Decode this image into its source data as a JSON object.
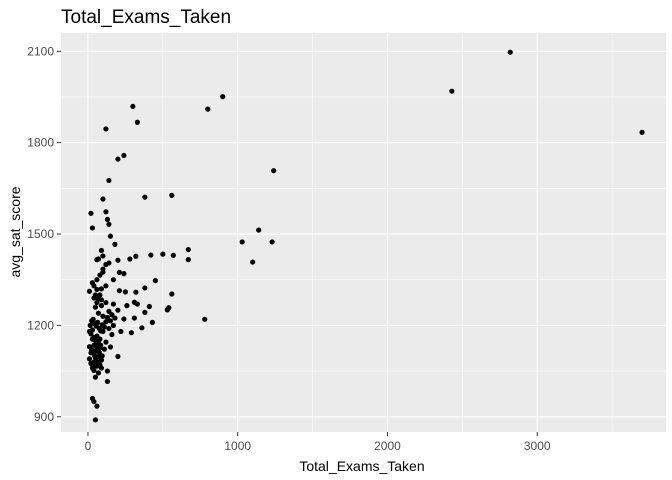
{
  "chart_data": {
    "type": "scatter",
    "title": "Total_Exams_Taken",
    "xlabel": "Total_Exams_Taken",
    "ylabel": "avg_sat_score",
    "xlim": [
      -180,
      3860
    ],
    "ylim": [
      850,
      2160
    ],
    "x_ticks": [
      0,
      1000,
      2000,
      3000
    ],
    "y_ticks": [
      900,
      1200,
      1500,
      1800,
      2100
    ],
    "x_tick_labels": [
      "0",
      "1000",
      "2000",
      "3000"
    ],
    "y_tick_labels": [
      "900",
      "1200",
      "1500",
      "1800",
      "2100"
    ],
    "grid": true,
    "legend": "none",
    "colors": {
      "panel": "#ebebeb",
      "grid_major": "#ffffff",
      "point": "#000000",
      "tick": "#333333"
    },
    "points": [
      [
        2820,
        2097
      ],
      [
        2430,
        1969
      ],
      [
        3700,
        1834
      ],
      [
        900,
        1951
      ],
      [
        800,
        1910
      ],
      [
        300,
        1919
      ],
      [
        330,
        1867
      ],
      [
        120,
        1845
      ],
      [
        240,
        1758
      ],
      [
        200,
        1746
      ],
      [
        1240,
        1708
      ],
      [
        140,
        1676
      ],
      [
        560,
        1627
      ],
      [
        380,
        1621
      ],
      [
        100,
        1615
      ],
      [
        20,
        1568
      ],
      [
        120,
        1573
      ],
      [
        130,
        1548
      ],
      [
        140,
        1532
      ],
      [
        30,
        1520
      ],
      [
        1140,
        1513
      ],
      [
        1230,
        1474
      ],
      [
        1030,
        1474
      ],
      [
        1100,
        1408
      ],
      [
        780,
        1220
      ],
      [
        670,
        1449
      ],
      [
        670,
        1416
      ],
      [
        500,
        1434
      ],
      [
        420,
        1431
      ],
      [
        570,
        1430
      ],
      [
        320,
        1427
      ],
      [
        280,
        1418
      ],
      [
        200,
        1414
      ],
      [
        100,
        1428
      ],
      [
        150,
        1493
      ],
      [
        180,
        1466
      ],
      [
        90,
        1446
      ],
      [
        70,
        1418
      ],
      [
        60,
        1416
      ],
      [
        140,
        1405
      ],
      [
        120,
        1400
      ],
      [
        100,
        1385
      ],
      [
        210,
        1374
      ],
      [
        240,
        1370
      ],
      [
        170,
        1350
      ],
      [
        30,
        1340
      ],
      [
        120,
        1330
      ],
      [
        210,
        1314
      ],
      [
        250,
        1310
      ],
      [
        320,
        1309
      ],
      [
        380,
        1323
      ],
      [
        450,
        1347
      ],
      [
        560,
        1303
      ],
      [
        10,
        1312
      ],
      [
        50,
        1300
      ],
      [
        60,
        1318
      ],
      [
        40,
        1290
      ],
      [
        90,
        1284
      ],
      [
        120,
        1275
      ],
      [
        170,
        1270
      ],
      [
        260,
        1265
      ],
      [
        310,
        1276
      ],
      [
        330,
        1270
      ],
      [
        410,
        1262
      ],
      [
        530,
        1251
      ],
      [
        540,
        1258
      ],
      [
        380,
        1243
      ],
      [
        200,
        1250
      ],
      [
        140,
        1246
      ],
      [
        70,
        1240
      ],
      [
        100,
        1230
      ],
      [
        180,
        1224
      ],
      [
        240,
        1221
      ],
      [
        310,
        1224
      ],
      [
        430,
        1210
      ],
      [
        360,
        1192
      ],
      [
        290,
        1176
      ],
      [
        220,
        1180
      ],
      [
        160,
        1170
      ],
      [
        120,
        1145
      ],
      [
        60,
        1140
      ],
      [
        30,
        1155
      ],
      [
        40,
        1135
      ],
      [
        80,
        1126
      ],
      [
        110,
        1122
      ],
      [
        150,
        1129
      ],
      [
        200,
        1098
      ],
      [
        20,
        1110
      ],
      [
        50,
        1094
      ],
      [
        90,
        1086
      ],
      [
        60,
        1066
      ],
      [
        30,
        1070
      ],
      [
        40,
        1052
      ],
      [
        70,
        1044
      ],
      [
        130,
        1050
      ],
      [
        50,
        1030
      ],
      [
        130,
        1016
      ],
      [
        15,
        1200
      ],
      [
        25,
        1215
      ],
      [
        35,
        1220
      ],
      [
        45,
        1205
      ],
      [
        55,
        1198
      ],
      [
        65,
        1210
      ],
      [
        75,
        1190
      ],
      [
        85,
        1182
      ],
      [
        95,
        1202
      ],
      [
        10,
        1180
      ],
      [
        20,
        1172
      ],
      [
        30,
        1185
      ],
      [
        40,
        1160
      ],
      [
        50,
        1150
      ],
      [
        60,
        1165
      ],
      [
        70,
        1145
      ],
      [
        80,
        1155
      ],
      [
        10,
        1130
      ],
      [
        25,
        1120
      ],
      [
        35,
        1110
      ],
      [
        45,
        1100
      ],
      [
        55,
        1090
      ],
      [
        65,
        1080
      ],
      [
        75,
        1112
      ],
      [
        85,
        1135
      ],
      [
        95,
        1100
      ],
      [
        10,
        1090
      ],
      [
        20,
        1075
      ],
      [
        30,
        1060
      ],
      [
        40,
        1080
      ],
      [
        50,
        1115
      ],
      [
        60,
        1125
      ],
      [
        70,
        1098
      ],
      [
        80,
        1070
      ],
      [
        90,
        1060
      ],
      [
        100,
        1180
      ],
      [
        110,
        1195
      ],
      [
        120,
        1212
      ],
      [
        130,
        1226
      ],
      [
        140,
        1190
      ],
      [
        150,
        1215
      ],
      [
        160,
        1235
      ],
      [
        170,
        1200
      ],
      [
        50,
        1260
      ],
      [
        60,
        1275
      ],
      [
        70,
        1288
      ],
      [
        80,
        1300
      ],
      [
        90,
        1265
      ],
      [
        40,
        1330
      ],
      [
        60,
        1350
      ],
      [
        80,
        1365
      ],
      [
        100,
        1375
      ],
      [
        90,
        1320
      ],
      [
        30,
        960
      ],
      [
        40,
        950
      ],
      [
        60,
        935
      ],
      [
        50,
        890
      ]
    ]
  }
}
